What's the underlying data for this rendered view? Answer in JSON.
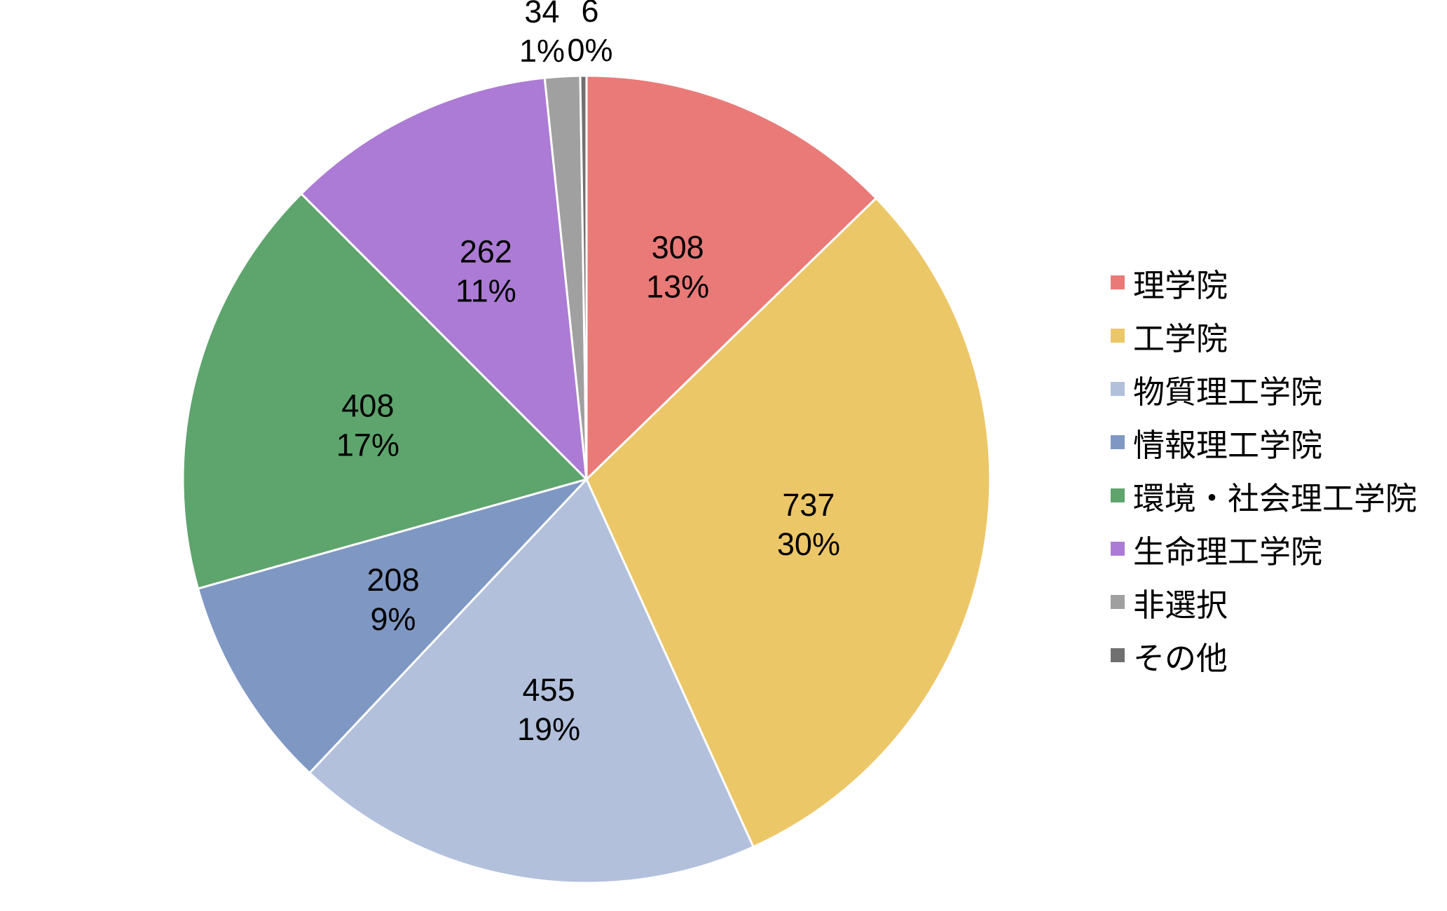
{
  "chart_data": {
    "type": "pie",
    "categories": [
      "理学院",
      "工学院",
      "物質理工学院",
      "情報理工学院",
      "環境・社会理工学院",
      "生命理工学院",
      "非選択",
      "その他"
    ],
    "values": [
      308,
      737,
      455,
      208,
      408,
      262,
      34,
      6
    ],
    "percent_labels": [
      "13%",
      "30%",
      "19%",
      "9%",
      "17%",
      "11%",
      "1%",
      "0%"
    ],
    "colors": [
      "#E97A78",
      "#ECC768",
      "#B2C0DC",
      "#7F97C3",
      "#5EA46D",
      "#AC7BD5",
      "#A0A0A0",
      "#707070"
    ],
    "start_angle": 0,
    "direction": "clockwise",
    "legend_position": "right"
  }
}
